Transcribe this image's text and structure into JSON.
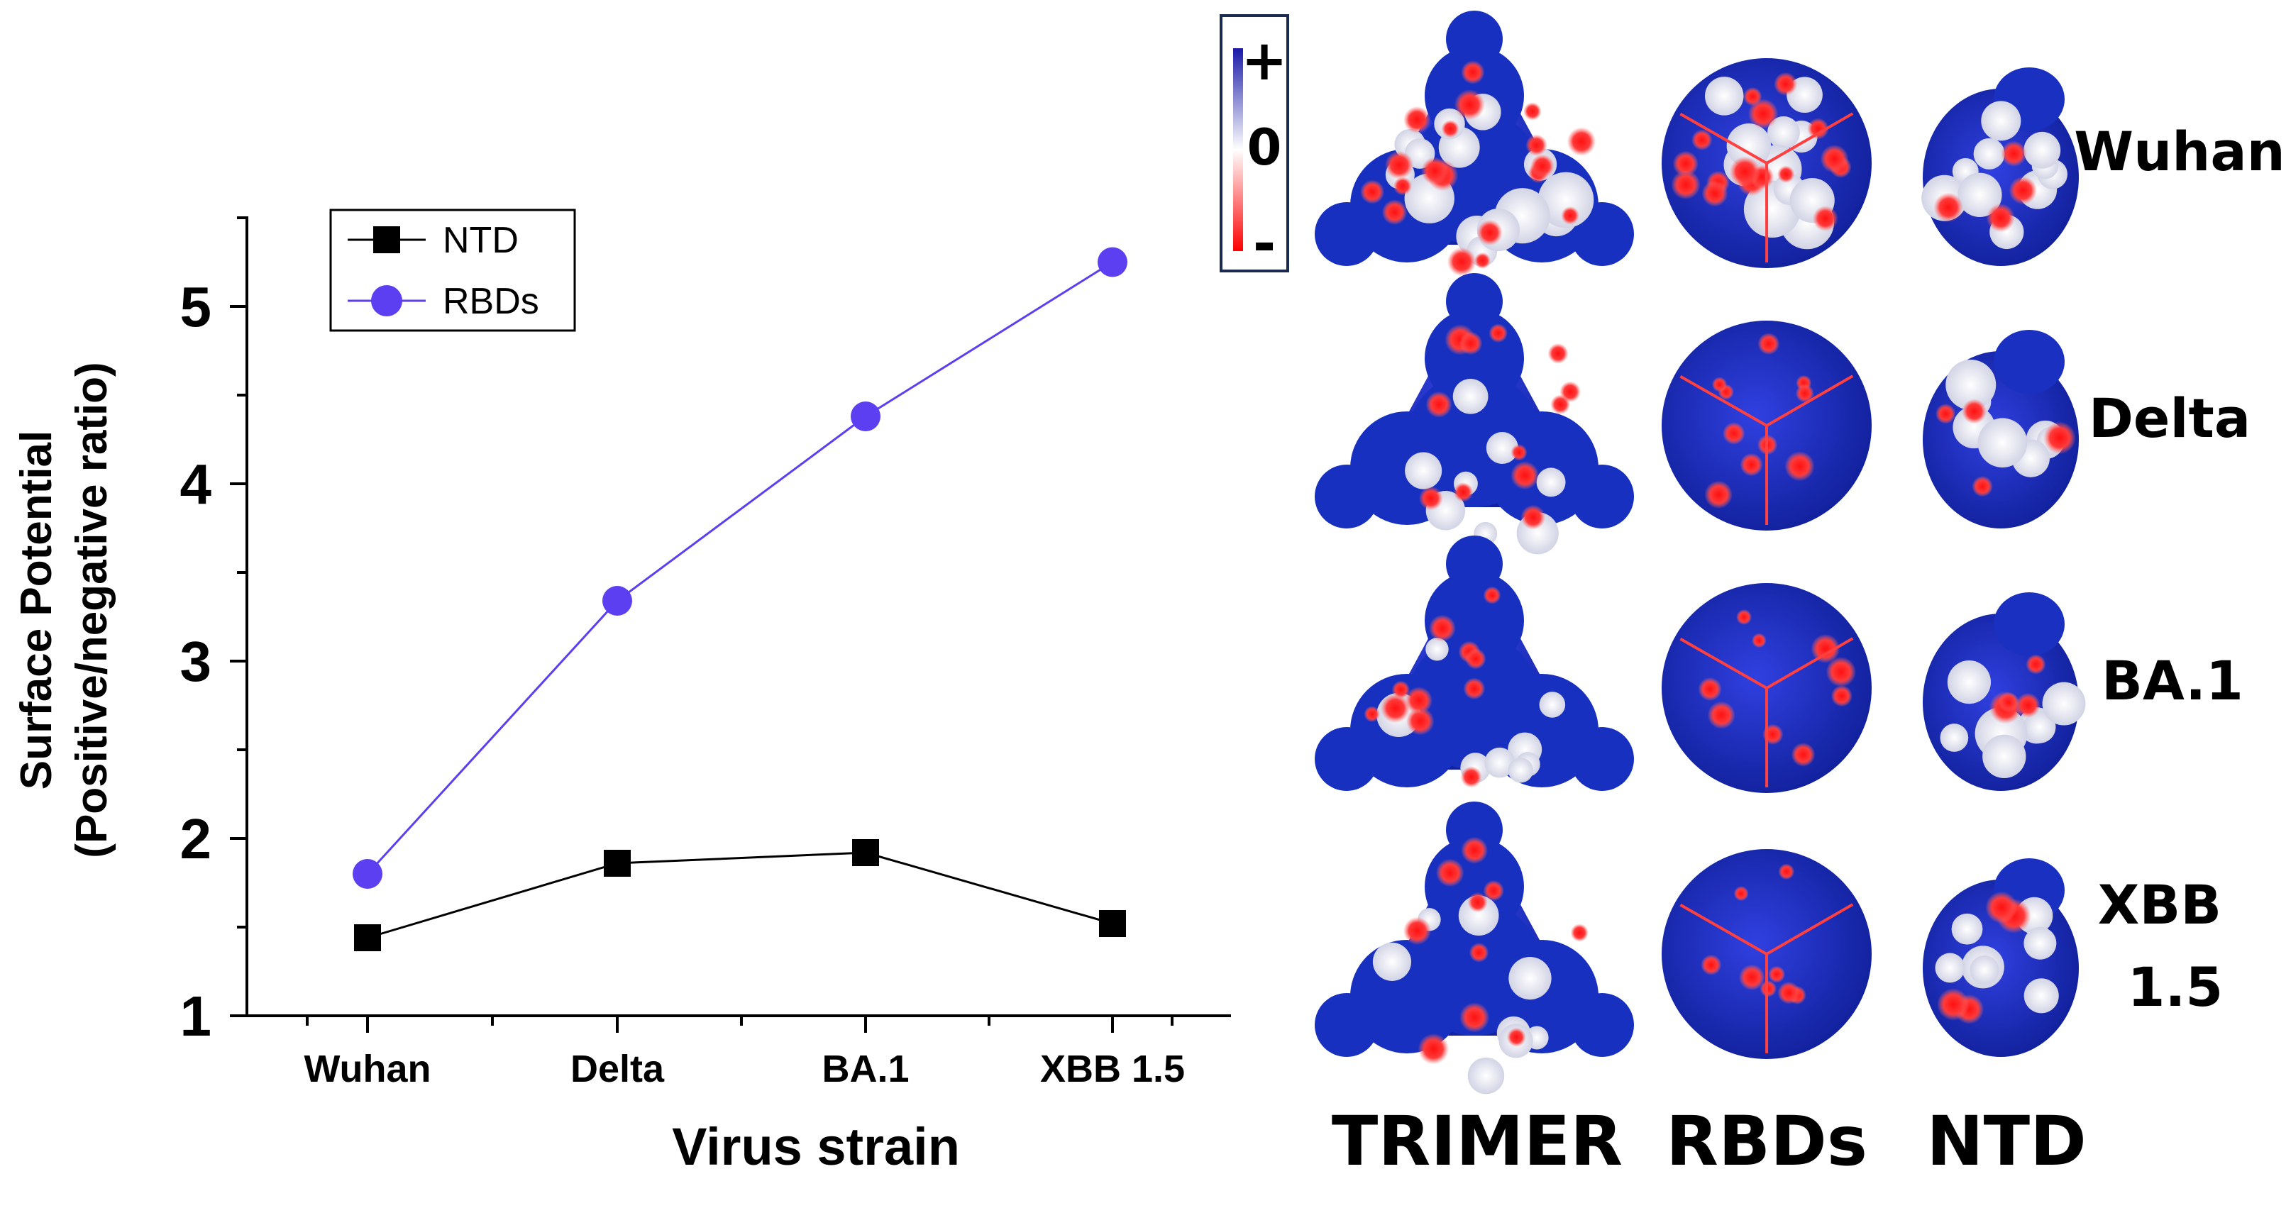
{
  "chart_data": {
    "type": "line",
    "categories": [
      "Wuhan",
      "Delta",
      "BA.1",
      "XBB 1.5"
    ],
    "series": [
      {
        "name": "NTD",
        "values": [
          1.44,
          1.86,
          1.92,
          1.52
        ],
        "color": "#000000",
        "marker": "square"
      },
      {
        "name": "RBDs",
        "values": [
          1.8,
          3.34,
          4.38,
          5.25
        ],
        "color": "#5b3ff0",
        "marker": "circle"
      }
    ],
    "ylim": [
      1,
      5.5
    ],
    "yticks": [
      "1",
      "2",
      "3",
      "4",
      "5"
    ],
    "xlabel": "Virus strain",
    "ylabel_line1": "Surface Potential",
    "ylabel_line2": "(Positive/negative ratio)",
    "legend_position": "top-left"
  },
  "colorbar": {
    "plus": "+",
    "zero": "0",
    "minus": "-",
    "colors": [
      "#1a1aa8",
      "#ffffff",
      "#ff0000"
    ]
  },
  "panels": {
    "row_labels": [
      "Wuhan",
      "Delta",
      "BA.1",
      "XBB",
      "1.5"
    ],
    "column_labels": [
      "TRIMER",
      "RBDs",
      "NTD"
    ],
    "surface_colors": {
      "positive": "#1428c8",
      "neutral": "#e6e6f0",
      "negative": "#ff1e1e"
    }
  }
}
